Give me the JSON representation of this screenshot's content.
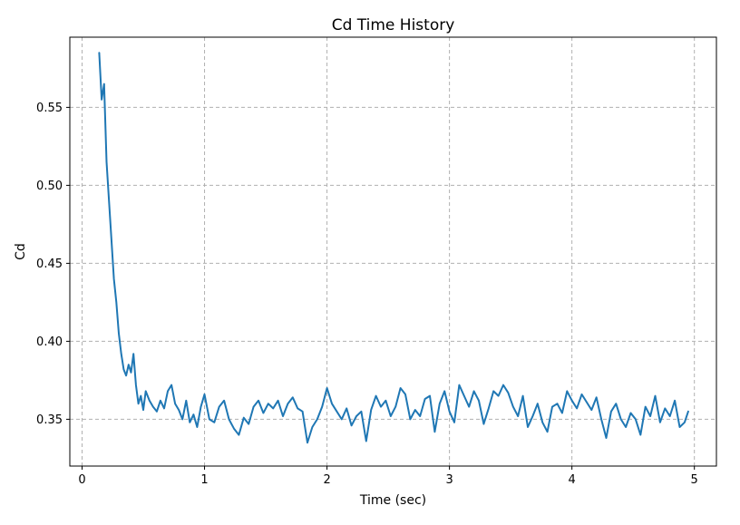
{
  "chart_data": {
    "type": "line",
    "title": "Cd Time History",
    "xlabel": "Time (sec)",
    "ylabel": "Cd",
    "xlim": [
      -0.1,
      5.18
    ],
    "ylim": [
      0.32,
      0.595
    ],
    "xticks": [
      0,
      1,
      2,
      3,
      4,
      5
    ],
    "xtick_labels": [
      "0",
      "1",
      "2",
      "3",
      "4",
      "5"
    ],
    "yticks": [
      0.35,
      0.4,
      0.45,
      0.5,
      0.55
    ],
    "ytick_labels": [
      "0.35",
      "0.40",
      "0.45",
      "0.50",
      "0.55"
    ],
    "grid": true,
    "legend": "none",
    "series": [
      {
        "color": "#1f77b4",
        "x": [
          0.14,
          0.16,
          0.18,
          0.2,
          0.22,
          0.24,
          0.26,
          0.28,
          0.3,
          0.32,
          0.34,
          0.36,
          0.38,
          0.4,
          0.42,
          0.44,
          0.46,
          0.48,
          0.5,
          0.52,
          0.55,
          0.58,
          0.61,
          0.64,
          0.67,
          0.7,
          0.73,
          0.76,
          0.79,
          0.82,
          0.85,
          0.88,
          0.91,
          0.94,
          0.97,
          1.0,
          1.04,
          1.08,
          1.12,
          1.16,
          1.2,
          1.24,
          1.28,
          1.32,
          1.36,
          1.4,
          1.44,
          1.48,
          1.52,
          1.56,
          1.6,
          1.64,
          1.68,
          1.72,
          1.76,
          1.8,
          1.84,
          1.88,
          1.92,
          1.96,
          2.0,
          2.04,
          2.08,
          2.12,
          2.16,
          2.2,
          2.24,
          2.28,
          2.32,
          2.36,
          2.4,
          2.44,
          2.48,
          2.52,
          2.56,
          2.6,
          2.64,
          2.68,
          2.72,
          2.76,
          2.8,
          2.84,
          2.88,
          2.92,
          2.96,
          3.0,
          3.04,
          3.08,
          3.12,
          3.16,
          3.2,
          3.24,
          3.28,
          3.32,
          3.36,
          3.4,
          3.44,
          3.48,
          3.52,
          3.56,
          3.6,
          3.64,
          3.68,
          3.72,
          3.76,
          3.8,
          3.84,
          3.88,
          3.92,
          3.96,
          4.0,
          4.04,
          4.08,
          4.12,
          4.16,
          4.2,
          4.24,
          4.28,
          4.32,
          4.36,
          4.4,
          4.44,
          4.48,
          4.52,
          4.56,
          4.6,
          4.64,
          4.68,
          4.72,
          4.76,
          4.8,
          4.84,
          4.88,
          4.92,
          4.95
        ],
        "y": [
          0.585,
          0.555,
          0.565,
          0.515,
          0.49,
          0.465,
          0.44,
          0.425,
          0.405,
          0.392,
          0.382,
          0.378,
          0.385,
          0.38,
          0.392,
          0.372,
          0.36,
          0.365,
          0.356,
          0.368,
          0.362,
          0.358,
          0.355,
          0.362,
          0.357,
          0.368,
          0.372,
          0.36,
          0.356,
          0.35,
          0.362,
          0.348,
          0.353,
          0.345,
          0.358,
          0.366,
          0.35,
          0.348,
          0.358,
          0.362,
          0.35,
          0.344,
          0.34,
          0.351,
          0.347,
          0.358,
          0.362,
          0.354,
          0.36,
          0.357,
          0.362,
          0.352,
          0.36,
          0.364,
          0.357,
          0.355,
          0.335,
          0.345,
          0.35,
          0.358,
          0.37,
          0.36,
          0.355,
          0.35,
          0.357,
          0.346,
          0.352,
          0.355,
          0.336,
          0.356,
          0.365,
          0.358,
          0.362,
          0.352,
          0.358,
          0.37,
          0.366,
          0.35,
          0.356,
          0.352,
          0.363,
          0.365,
          0.342,
          0.36,
          0.368,
          0.355,
          0.348,
          0.372,
          0.365,
          0.358,
          0.368,
          0.362,
          0.347,
          0.357,
          0.368,
          0.365,
          0.372,
          0.367,
          0.358,
          0.352,
          0.365,
          0.345,
          0.352,
          0.36,
          0.348,
          0.342,
          0.358,
          0.36,
          0.354,
          0.368,
          0.362,
          0.357,
          0.366,
          0.361,
          0.356,
          0.364,
          0.35,
          0.338,
          0.355,
          0.36,
          0.35,
          0.345,
          0.354,
          0.35,
          0.34,
          0.358,
          0.352,
          0.365,
          0.348,
          0.357,
          0.352,
          0.362,
          0.345,
          0.348,
          0.355
        ]
      }
    ]
  }
}
